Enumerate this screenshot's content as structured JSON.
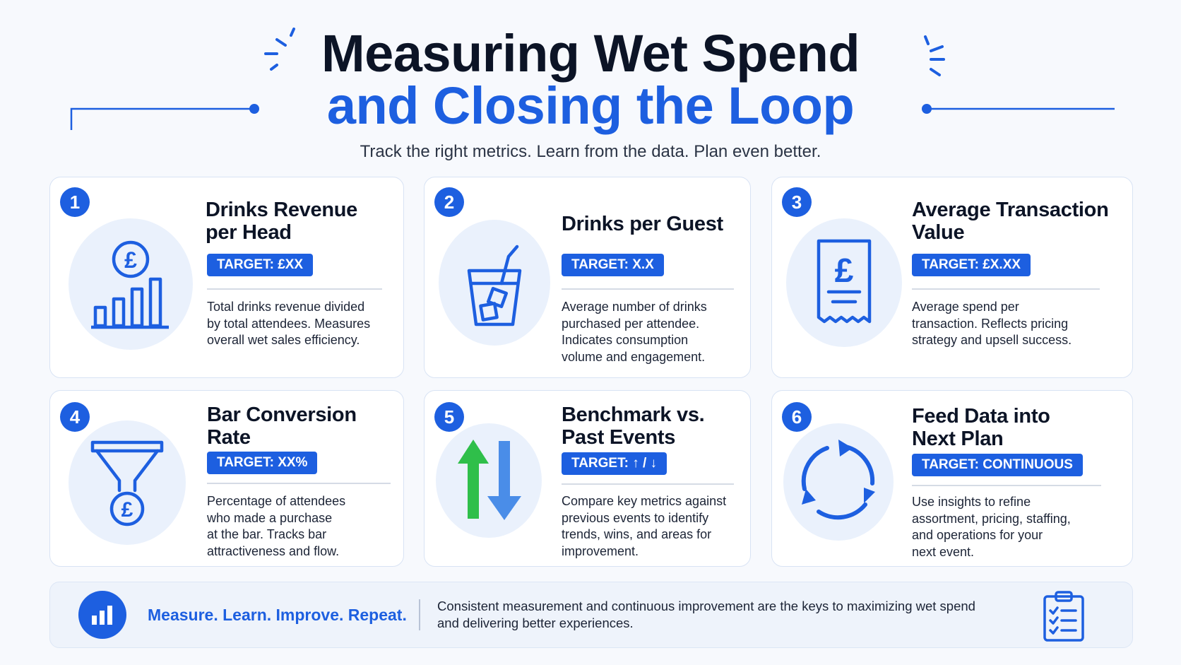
{
  "header": {
    "title_line1": "Measuring Wet Spend",
    "title_line2": "and Closing the Loop",
    "subtitle": "Track the right metrics. Learn from the data. Plan even better."
  },
  "metrics": [
    {
      "number": "1",
      "title_line1": "Drinks Revenue",
      "title_line2": "per Head",
      "target": "TARGET: £XX",
      "description": [
        "Total drinks revenue divided",
        "by total attendees. Measures",
        "overall wet sales efficiency."
      ],
      "icon": "pound-bar-chart-icon"
    },
    {
      "number": "2",
      "title_line1": "Drinks per Guest",
      "title_line2": "",
      "target": "TARGET: X.X",
      "description": [
        "Average number of drinks",
        "purchased per attendee.",
        "Indicates consumption",
        "volume and engagement."
      ],
      "icon": "drink-glass-icon"
    },
    {
      "number": "3",
      "title_line1": "Average Transaction",
      "title_line2": "Value",
      "target": "TARGET: £X.XX",
      "description": [
        "Average spend per",
        "transaction. Reflects pricing",
        "strategy and upsell success."
      ],
      "icon": "receipt-icon"
    },
    {
      "number": "4",
      "title_line1": "Bar Conversion",
      "title_line2": "Rate",
      "target": "TARGET: XX%",
      "description": [
        "Percentage of attendees",
        "who made a purchase",
        "at the bar. Tracks bar",
        "attractiveness and flow."
      ],
      "icon": "funnel-icon"
    },
    {
      "number": "5",
      "title_line1": "Benchmark vs.",
      "title_line2": "Past Events",
      "target": "TARGET: ↑ / ↓",
      "description": [
        "Compare key metrics against",
        "previous events to identify",
        "trends, wins, and areas for",
        "improvement."
      ],
      "icon": "up-down-arrows-icon"
    },
    {
      "number": "6",
      "title_line1": "Feed Data into",
      "title_line2": "Next Plan",
      "target": "TARGET: CONTINUOUS",
      "description": [
        "Use insights to refine",
        "assortment, pricing, staffing,",
        "and operations for your",
        "next event."
      ],
      "icon": "refresh-cycle-icon"
    }
  ],
  "footer": {
    "slogan": "Measure. Learn. Improve. Repeat.",
    "text_line1": "Consistent measurement and continuous improvement are the keys to maximizing wet spend",
    "text_line2": "and delivering better experiences.",
    "left_icon": "bar-chart-icon",
    "right_icon": "clipboard-checklist-icon"
  },
  "colors": {
    "accent": "#1d5fe0",
    "title_dark": "#0c1426",
    "icon_bg": "#eaf1fc",
    "green_arrow": "#2fbf4a",
    "blue_arrow": "#4a8de8"
  }
}
